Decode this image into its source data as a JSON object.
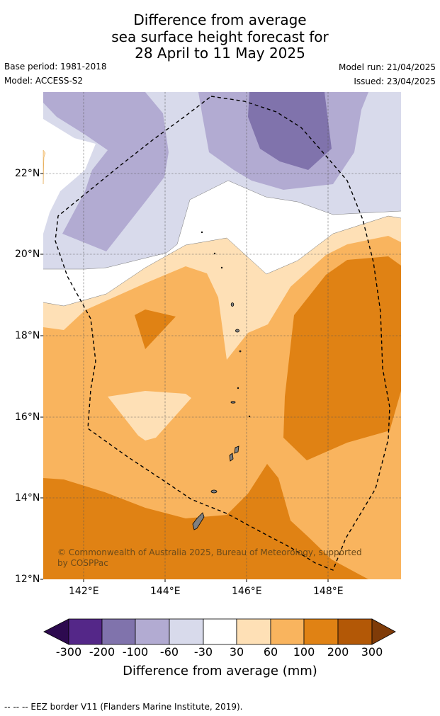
{
  "title": {
    "line1": "Difference from average",
    "line2": "sea surface height forecast for",
    "line3": "28 April to 11 May 2025"
  },
  "meta": {
    "base_period": "Base period: 1981-2018",
    "model": "Model: ACCESS-S2",
    "model_run": "Model run: 21/04/2025",
    "issued": "Issued: 23/04/2025"
  },
  "map": {
    "extent": {
      "lon": [
        141,
        149.8
      ],
      "lat": [
        12,
        24
      ]
    },
    "lat_labels": [
      "22°N",
      "20°N",
      "18°N",
      "16°N",
      "14°N",
      "12°N"
    ],
    "lon_labels": [
      "142°E",
      "144°E",
      "146°E",
      "148°E"
    ],
    "copyright": "© Commonwealth of Australia 2025, Bureau of Meteorology, supported by COSPPac",
    "land_color": "#808080",
    "eez_line": "dashed black"
  },
  "colorbar": {
    "title": "Difference from average (mm)",
    "ticks": [
      "-300",
      "-200",
      "-100",
      "-60",
      "-30",
      "30",
      "60",
      "100",
      "200",
      "300"
    ],
    "colors": [
      "#2d0a4f",
      "#542788",
      "#8073ac",
      "#b2abd2",
      "#d8daeb",
      "#ffffff",
      "#fee0b6",
      "#f9b45e",
      "#e08214",
      "#b35806",
      "#7f3b08"
    ]
  },
  "footer": "--  --  -- EEZ border V11 (Flanders Marine Institute, 2019)."
}
